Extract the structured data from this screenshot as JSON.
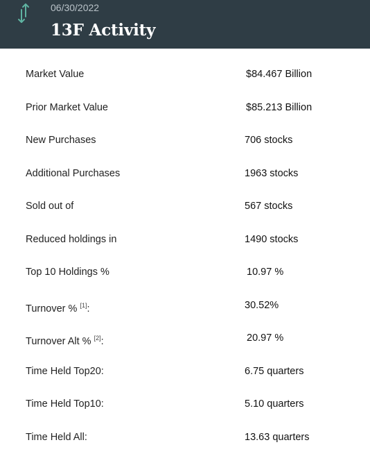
{
  "header": {
    "icon": "up-down-arrows-icon",
    "date": "06/30/2022",
    "title": "13F Activity"
  },
  "rows": [
    {
      "label": "Market Value",
      "value": "$84.467 Billion"
    },
    {
      "label": "Prior Market Value",
      "value": "$85.213 Billion"
    },
    {
      "label": "New Purchases",
      "value": "706 stocks"
    },
    {
      "label": "Additional Purchases",
      "value": "1963 stocks"
    },
    {
      "label": "Sold out of",
      "value": "567 stocks"
    },
    {
      "label": "Reduced holdings in",
      "value": "1490 stocks"
    },
    {
      "label": "Top 10 Holdings %",
      "value": "10.97 %"
    },
    {
      "label": "Turnover %",
      "note": "[1]",
      "suffix": ":",
      "value": "30.52%"
    },
    {
      "label": "Turnover Alt %",
      "note": "[2]",
      "suffix": ":",
      "value": "20.97 %"
    },
    {
      "label": "Time Held Top20:",
      "value": "6.75 quarters"
    },
    {
      "label": "Time Held Top10:",
      "value": "5.10 quarters"
    },
    {
      "label": "Time Held All:",
      "value": "13.63 quarters"
    }
  ]
}
